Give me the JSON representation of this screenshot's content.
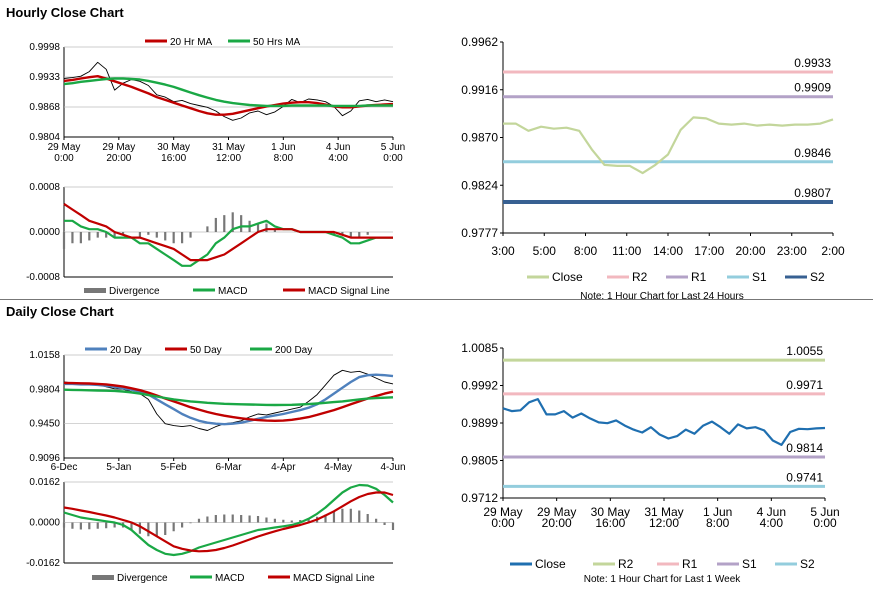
{
  "sections": {
    "hourly_title": "Hourly Close Chart",
    "daily_title": "Daily Close Chart"
  },
  "chart_data": [
    {
      "id": "hourly_price",
      "type": "line",
      "legend": [
        "20 Hr MA",
        "50 Hrs MA"
      ],
      "colors": {
        "price": "#000000",
        "ma20": "#c00000",
        "ma50": "#1aa845"
      },
      "x_ticks": [
        [
          "29 May",
          "0:00"
        ],
        [
          "29 May",
          "20:00"
        ],
        [
          "30 May",
          "16:00"
        ],
        [
          "31 May",
          "12:00"
        ],
        [
          "1 Jun",
          "8:00"
        ],
        [
          "4 Jun",
          "4:00"
        ],
        [
          "5 Jun",
          "0:00"
        ]
      ],
      "ylim": [
        0.9804,
        0.9998
      ],
      "y_ticks": [
        "0.9998",
        "0.9933",
        "0.9868",
        "0.9804"
      ],
      "price": [
        0.993,
        0.9932,
        0.9935,
        0.9945,
        0.9965,
        0.995,
        0.9905,
        0.992,
        0.9928,
        0.9924,
        0.9915,
        0.9895,
        0.989,
        0.988,
        0.9883,
        0.9876,
        0.9872,
        0.9868,
        0.986,
        0.9848,
        0.984,
        0.9845,
        0.9856,
        0.986,
        0.9852,
        0.9858,
        0.987,
        0.9885,
        0.9878,
        0.9886,
        0.9884,
        0.988,
        0.987,
        0.985,
        0.986,
        0.9882,
        0.9885,
        0.988,
        0.9884,
        0.988
      ],
      "ma20": [
        0.9925,
        0.9927,
        0.993,
        0.9933,
        0.9935,
        0.993,
        0.9924,
        0.9918,
        0.9912,
        0.9905,
        0.9898,
        0.989,
        0.9884,
        0.9878,
        0.9872,
        0.9866,
        0.986,
        0.9855,
        0.9852,
        0.9852,
        0.9854,
        0.9858,
        0.9862,
        0.9866,
        0.987,
        0.9873,
        0.9876,
        0.9878,
        0.9879,
        0.9879,
        0.9877,
        0.9874,
        0.987,
        0.9868,
        0.9868,
        0.987,
        0.9872,
        0.9873,
        0.9874,
        0.9875
      ],
      "ma50": [
        0.9918,
        0.992,
        0.9923,
        0.9925,
        0.9927,
        0.9929,
        0.993,
        0.993,
        0.9929,
        0.9928,
        0.9925,
        0.9921,
        0.9917,
        0.9912,
        0.9906,
        0.99,
        0.9894,
        0.9889,
        0.9884,
        0.988,
        0.9877,
        0.9875,
        0.9873,
        0.9872,
        0.9871,
        0.9871,
        0.9871,
        0.9872,
        0.9872,
        0.9872,
        0.9872,
        0.9872,
        0.9871,
        0.9871,
        0.9871,
        0.9871,
        0.9872,
        0.9872,
        0.9872,
        0.9872
      ]
    },
    {
      "id": "hourly_macd",
      "type": "line",
      "legend": [
        "Divergence",
        "MACD",
        "MACD Signal Line"
      ],
      "colors": {
        "divergence": "#777777",
        "macd": "#1aa845",
        "signal": "#c00000"
      },
      "ylim": [
        -0.0008,
        0.0008
      ],
      "y_ticks": [
        "0.0008",
        "0.0000",
        "-0.0008"
      ],
      "macd": [
        0.0002,
        0.0002,
        0.0001,
        5e-05,
        5e-05,
        0.0,
        -0.0001,
        -0.0001,
        -0.0001,
        -0.0002,
        -0.0002,
        -0.0003,
        -0.0004,
        -0.0005,
        -0.0006,
        -0.0006,
        -0.0005,
        -0.0004,
        -0.0002,
        -0.0001,
        5e-05,
        0.0001,
        0.0001,
        0.00015,
        0.0002,
        0.0001,
        5e-05,
        5e-05,
        0.0,
        0.0,
        0.0,
        0.0,
        -5e-05,
        -0.0001,
        -0.0002,
        -0.0002,
        -0.00015,
        -0.0001,
        -0.0001,
        -0.0001
      ],
      "signal": [
        0.0005,
        0.0004,
        0.0003,
        0.0002,
        0.00015,
        0.0001,
        0.0,
        -5e-05,
        -0.0001,
        -0.0001,
        -0.00015,
        -0.0002,
        -0.00025,
        -0.0003,
        -0.0004,
        -0.0005,
        -0.0005,
        -0.0005,
        -0.00045,
        -0.0004,
        -0.0003,
        -0.0002,
        -0.0001,
        0.0,
        5e-05,
        5e-05,
        5e-05,
        5e-05,
        0.0,
        0.0,
        0.0,
        0.0,
        0.0,
        -5e-05,
        -0.0001,
        -0.0001,
        -0.0001,
        -0.0001,
        -0.0001,
        -0.0001
      ],
      "divergence": [
        -0.0003,
        -0.0002,
        -0.0002,
        -0.00015,
        -0.0001,
        -0.0001,
        -0.0001,
        -5e-05,
        0.0,
        -0.0001,
        -5e-05,
        -0.0001,
        -0.00015,
        -0.0002,
        -0.0002,
        -0.0001,
        0.0,
        0.0001,
        0.00025,
        0.0003,
        0.00035,
        0.0003,
        0.0002,
        0.00015,
        0.00015,
        5e-05,
        0.0,
        0.0,
        0.0,
        0.0,
        0.0,
        0.0,
        -5e-05,
        -5e-05,
        -0.0001,
        -0.0001,
        -5e-05,
        0.0,
        0.0,
        0.0
      ]
    },
    {
      "id": "hourly_levels",
      "type": "line",
      "x_ticks": [
        "3:00",
        "5:00",
        "8:00",
        "11:00",
        "14:00",
        "17:00",
        "20:00",
        "23:00",
        "2:00"
      ],
      "ylim": [
        0.9777,
        0.9962
      ],
      "y_ticks": [
        "0.9962",
        "0.9916",
        "0.9870",
        "0.9824",
        "0.9777"
      ],
      "close": [
        0.9883,
        0.9883,
        0.9876,
        0.988,
        0.9878,
        0.9879,
        0.9876,
        0.9858,
        0.9843,
        0.9842,
        0.9842,
        0.9835,
        0.9843,
        0.9853,
        0.9877,
        0.9889,
        0.9888,
        0.9883,
        0.9882,
        0.9883,
        0.9881,
        0.9882,
        0.9881,
        0.9882,
        0.9882,
        0.9883,
        0.9887
      ],
      "levels": [
        {
          "name": "R2",
          "value": 0.9933,
          "label": "0.9933",
          "color": "#f2b8bf"
        },
        {
          "name": "R1",
          "value": 0.9909,
          "label": "0.9909",
          "color": "#b3a2c7"
        },
        {
          "name": "S1",
          "value": 0.9846,
          "label": "0.9846",
          "color": "#93cddd"
        },
        {
          "name": "S2",
          "value": 0.9807,
          "label": "0.9807",
          "color": "#376092"
        }
      ],
      "legend": [
        "Close",
        "R2",
        "R1",
        "S1",
        "S2"
      ],
      "close_color": "#c3d69b",
      "note": "Note: 1 Hour Chart for Last 24 Hours"
    },
    {
      "id": "daily_price",
      "type": "line",
      "legend": [
        "20 Day",
        "50 Day",
        "200 Day"
      ],
      "colors": {
        "price": "#000000",
        "d20": "#4f81bd",
        "d50": "#c00000",
        "d200": "#1aa845"
      },
      "x_ticks": [
        "6-Dec",
        "5-Jan",
        "5-Feb",
        "6-Mar",
        "4-Apr",
        "4-May",
        "4-Jun"
      ],
      "ylim": [
        0.9096,
        1.0158
      ],
      "y_ticks": [
        "1.0158",
        "0.9804",
        "0.9450",
        "0.9096"
      ],
      "price": [
        0.988,
        0.987,
        0.985,
        0.986,
        0.9855,
        0.983,
        0.981,
        0.9805,
        0.978,
        0.976,
        0.97,
        0.955,
        0.945,
        0.943,
        0.942,
        0.943,
        0.94,
        0.938,
        0.942,
        0.945,
        0.946,
        0.948,
        0.952,
        0.955,
        0.954,
        0.956,
        0.958,
        0.96,
        0.962,
        0.968,
        0.975,
        0.985,
        0.995,
        1.0,
        0.998,
        0.999,
        0.996,
        0.992,
        0.988,
        0.986
      ],
      "d20": [
        0.986,
        0.986,
        0.9855,
        0.9855,
        0.985,
        0.984,
        0.983,
        0.9815,
        0.98,
        0.978,
        0.975,
        0.97,
        0.965,
        0.96,
        0.955,
        0.951,
        0.948,
        0.946,
        0.945,
        0.9445,
        0.945,
        0.946,
        0.948,
        0.95,
        0.952,
        0.9535,
        0.955,
        0.957,
        0.959,
        0.9615,
        0.965,
        0.97,
        0.976,
        0.982,
        0.988,
        0.993,
        0.995,
        0.9955,
        0.995,
        0.994
      ],
      "d50": [
        0.987,
        0.9868,
        0.9866,
        0.9864,
        0.986,
        0.9855,
        0.9845,
        0.9832,
        0.9815,
        0.9795,
        0.977,
        0.974,
        0.971,
        0.968,
        0.965,
        0.962,
        0.9595,
        0.957,
        0.955,
        0.9532,
        0.9518,
        0.9505,
        0.9495,
        0.9487,
        0.9482,
        0.948,
        0.9482,
        0.949,
        0.9502,
        0.9518,
        0.954,
        0.9565,
        0.959,
        0.962,
        0.965,
        0.968,
        0.971,
        0.9735,
        0.976,
        0.978
      ],
      "d200": [
        0.98,
        0.9798,
        0.9796,
        0.9794,
        0.9792,
        0.979,
        0.9788,
        0.9782,
        0.9772,
        0.976,
        0.9745,
        0.973,
        0.9715,
        0.97,
        0.969,
        0.968,
        0.9672,
        0.9665,
        0.966,
        0.9655,
        0.9652,
        0.965,
        0.9648,
        0.9646,
        0.9644,
        0.9642,
        0.9643,
        0.9645,
        0.9648,
        0.9652,
        0.9658,
        0.9665,
        0.9672,
        0.968,
        0.969,
        0.97,
        0.9708,
        0.9714,
        0.9718,
        0.9722
      ]
    },
    {
      "id": "daily_macd",
      "type": "line",
      "legend": [
        "Divergence",
        "MACD",
        "MACD Signal Line"
      ],
      "colors": {
        "divergence": "#777777",
        "macd": "#1aa845",
        "signal": "#c00000"
      },
      "ylim": [
        -0.0162,
        0.0162
      ],
      "y_ticks": [
        "0.0162",
        "0.0000",
        "-0.0162"
      ],
      "macd": [
        0.004,
        0.003,
        0.002,
        0.0015,
        0.001,
        0.0005,
        0.0,
        -0.001,
        -0.003,
        -0.006,
        -0.009,
        -0.011,
        -0.0125,
        -0.013,
        -0.0125,
        -0.0115,
        -0.01,
        -0.009,
        -0.008,
        -0.007,
        -0.006,
        -0.005,
        -0.004,
        -0.003,
        -0.0025,
        -0.002,
        -0.0015,
        -0.001,
        0.0,
        0.0015,
        0.0035,
        0.006,
        0.009,
        0.012,
        0.014,
        0.015,
        0.0148,
        0.0135,
        0.011,
        0.008
      ],
      "signal": [
        0.006,
        0.0055,
        0.0048,
        0.0042,
        0.0035,
        0.0028,
        0.002,
        0.001,
        0.0,
        -0.0015,
        -0.0035,
        -0.0055,
        -0.0075,
        -0.0095,
        -0.0105,
        -0.0112,
        -0.0115,
        -0.0114,
        -0.011,
        -0.0102,
        -0.0092,
        -0.008,
        -0.0068,
        -0.0056,
        -0.0045,
        -0.0035,
        -0.0026,
        -0.0018,
        -0.001,
        0.0,
        0.0012,
        0.0028,
        0.0045,
        0.0065,
        0.0085,
        0.0102,
        0.0114,
        0.012,
        0.012,
        0.011
      ],
      "divergence": [
        -0.002,
        -0.0025,
        -0.0028,
        -0.0027,
        -0.0025,
        -0.0023,
        -0.002,
        -0.002,
        -0.003,
        -0.0045,
        -0.0055,
        -0.0055,
        -0.005,
        -0.0035,
        -0.002,
        -0.0003,
        0.0015,
        0.0024,
        0.003,
        0.0032,
        0.0032,
        0.003,
        0.0028,
        0.0026,
        0.002,
        0.0015,
        0.0011,
        0.0008,
        0.001,
        0.0015,
        0.0023,
        0.0032,
        0.0045,
        0.0055,
        0.0055,
        0.0048,
        0.0034,
        0.0015,
        -0.001,
        -0.003
      ]
    },
    {
      "id": "daily_levels",
      "type": "line",
      "x_ticks": [
        [
          "29 May",
          "0:00"
        ],
        [
          "29 May",
          "20:00"
        ],
        [
          "30 May",
          "16:00"
        ],
        [
          "31 May",
          "12:00"
        ],
        [
          "1 Jun",
          "8:00"
        ],
        [
          "4 Jun",
          "4:00"
        ],
        [
          "5 Jun",
          "0:00"
        ]
      ],
      "ylim": [
        0.9712,
        1.0085
      ],
      "y_ticks": [
        "1.0085",
        "0.9992",
        "0.9899",
        "0.9805",
        "0.9712"
      ],
      "close": [
        0.9935,
        0.9928,
        0.993,
        0.995,
        0.9958,
        0.992,
        0.992,
        0.9928,
        0.9912,
        0.9922,
        0.991,
        0.99,
        0.9898,
        0.9905,
        0.9892,
        0.9882,
        0.9875,
        0.9888,
        0.987,
        0.986,
        0.9866,
        0.9882,
        0.9872,
        0.9892,
        0.9902,
        0.9888,
        0.9872,
        0.9895,
        0.9885,
        0.9888,
        0.988,
        0.9855,
        0.9844,
        0.9876,
        0.9884,
        0.9883,
        0.9885,
        0.9886
      ],
      "close_color": "#1f6fb0",
      "levels": [
        {
          "name": "R2",
          "value": 1.0055,
          "label": "1.0055",
          "color": "#c3d69b"
        },
        {
          "name": "R1",
          "value": 0.9971,
          "label": "0.9971",
          "color": "#f2b8bf"
        },
        {
          "name": "S1",
          "value": 0.9814,
          "label": "0.9814",
          "color": "#b3a2c7"
        },
        {
          "name": "S2",
          "value": 0.9741,
          "label": "0.9741",
          "color": "#93cddd"
        }
      ],
      "legend": [
        "Close",
        "R2",
        "R1",
        "S1",
        "S2"
      ],
      "note": "Note: 1 Hour Chart for Last 1 Week"
    }
  ]
}
